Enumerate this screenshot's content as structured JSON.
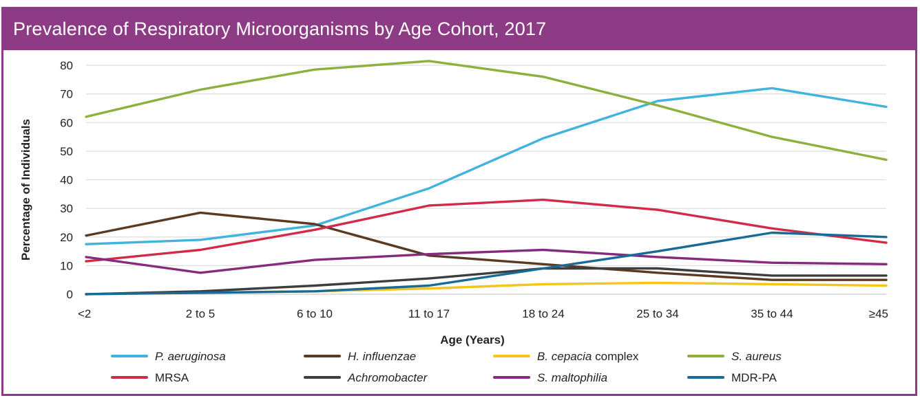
{
  "title": "Prevalence of Respiratory Microorganisms by Age Cohort, 2017",
  "chart_data": {
    "type": "line",
    "title": "Prevalence of Respiratory Microorganisms by Age Cohort, 2017",
    "xlabel": "Age (Years)",
    "ylabel": "Percentage of Individuals",
    "categories": [
      "<2",
      "2 to 5",
      "6 to 10",
      "11 to 17",
      "18 to 24",
      "25 to 34",
      "35 to 44",
      "≥45"
    ],
    "ylim": [
      0,
      80
    ],
    "yticks": [
      "0",
      "10",
      "20",
      "30",
      "40",
      "50",
      "60",
      "70",
      "80"
    ],
    "grid": "horizontal",
    "legend": "bottom",
    "series": [
      {
        "name": "P. aeruginosa",
        "italic": "P. aeruginosa",
        "suffix": "",
        "color": "#41b3df",
        "values": [
          17.5,
          19,
          24,
          37,
          54.5,
          67.5,
          72,
          65.5
        ]
      },
      {
        "name": "H. influenzae",
        "italic": "H. influenzae",
        "suffix": "",
        "color": "#5b3a22",
        "values": [
          20.5,
          28.5,
          24.5,
          13.5,
          10.5,
          7.5,
          5,
          5
        ]
      },
      {
        "name": "B. cepacia complex",
        "italic": "B. cepacia",
        "suffix": " complex",
        "color": "#f5c518",
        "values": [
          0,
          0.5,
          1,
          2,
          3.5,
          4,
          3.5,
          3
        ]
      },
      {
        "name": "S. aureus",
        "italic": "S. aureus",
        "suffix": "",
        "color": "#8db03e",
        "values": [
          62,
          71.5,
          78.5,
          81.5,
          76,
          66,
          55,
          47
        ]
      },
      {
        "name": "MRSA",
        "italic": "",
        "suffix": "MRSA",
        "color": "#d42a4a",
        "values": [
          11.5,
          15.5,
          22.5,
          31,
          33,
          29.5,
          23,
          18
        ]
      },
      {
        "name": "Achromobacter",
        "italic": "Achromobacter",
        "suffix": "",
        "color": "#3d3d3d",
        "values": [
          0,
          1,
          3,
          5.5,
          9,
          9,
          6.5,
          6.5
        ]
      },
      {
        "name": "S. maltophilia",
        "italic": "S. maltophilia",
        "suffix": "",
        "color": "#862a7e",
        "values": [
          13,
          7.5,
          12,
          14,
          15.5,
          13,
          11,
          10.5
        ]
      },
      {
        "name": "MDR-PA",
        "italic": "",
        "suffix": "MDR-PA",
        "color": "#1a6a96",
        "values": [
          0,
          0.5,
          1,
          3,
          9,
          15,
          21.5,
          20
        ]
      }
    ]
  }
}
